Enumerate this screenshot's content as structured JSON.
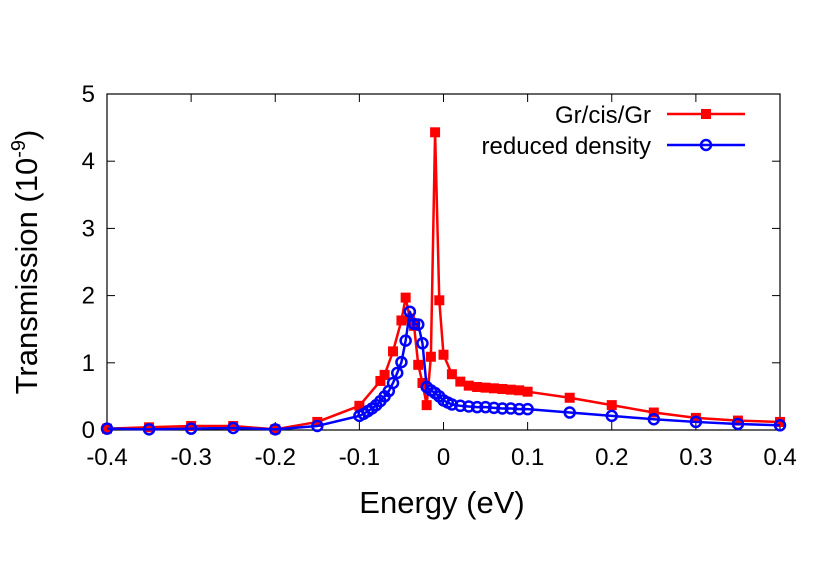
{
  "chart_data": {
    "type": "line",
    "xlabel": "Energy (eV)",
    "ylabel_main": "Transmission (10",
    "ylabel_exp": "-9",
    "ylabel_close": ")",
    "xlim": [
      -0.4,
      0.4
    ],
    "ylim": [
      0,
      5
    ],
    "xticks": [
      -0.4,
      -0.3,
      -0.2,
      -0.1,
      0,
      0.1,
      0.2,
      0.3,
      0.4
    ],
    "xtick_labels": [
      "-0.4",
      "-0.3",
      "-0.2",
      "-0.1",
      "0",
      "0.1",
      "0.2",
      "0.3",
      "0.4"
    ],
    "yticks": [
      0,
      1,
      2,
      3,
      4,
      5
    ],
    "ytick_labels": [
      "0",
      "1",
      "2",
      "3",
      "4",
      "5"
    ],
    "legend_position": "top-right",
    "grid": false,
    "series": [
      {
        "name": "Gr/cis/Gr",
        "color": "#ff0000",
        "marker": "filled-square",
        "x": [
          -0.4,
          -0.35,
          -0.3,
          -0.25,
          -0.2,
          -0.15,
          -0.1,
          -0.075,
          -0.07,
          -0.06,
          -0.05,
          -0.045,
          -0.04,
          -0.035,
          -0.03,
          -0.025,
          -0.02,
          -0.015,
          -0.01,
          -0.005,
          0,
          0.01,
          0.02,
          0.03,
          0.04,
          0.05,
          0.06,
          0.07,
          0.08,
          0.09,
          0.1,
          0.15,
          0.2,
          0.25,
          0.3,
          0.35,
          0.4
        ],
        "y": [
          0.02,
          0.04,
          0.06,
          0.06,
          0.01,
          0.12,
          0.36,
          0.73,
          0.82,
          1.17,
          1.63,
          1.97,
          1.66,
          1.55,
          0.97,
          0.7,
          0.37,
          1.09,
          4.43,
          1.93,
          1.12,
          0.83,
          0.72,
          0.66,
          0.64,
          0.63,
          0.62,
          0.61,
          0.6,
          0.59,
          0.57,
          0.48,
          0.37,
          0.26,
          0.18,
          0.14,
          0.12
        ]
      },
      {
        "name": "reduced density",
        "color": "#0000ff",
        "marker": "open-circle",
        "x": [
          -0.4,
          -0.35,
          -0.3,
          -0.25,
          -0.2,
          -0.15,
          -0.1,
          -0.095,
          -0.09,
          -0.085,
          -0.08,
          -0.075,
          -0.07,
          -0.065,
          -0.06,
          -0.055,
          -0.05,
          -0.045,
          -0.04,
          -0.035,
          -0.03,
          -0.025,
          -0.02,
          -0.015,
          -0.01,
          -0.005,
          0,
          0.005,
          0.01,
          0.02,
          0.03,
          0.04,
          0.05,
          0.06,
          0.07,
          0.08,
          0.09,
          0.1,
          0.15,
          0.2,
          0.25,
          0.3,
          0.35,
          0.4
        ],
        "y": [
          0.02,
          0.01,
          0.02,
          0.03,
          0.01,
          0.06,
          0.21,
          0.24,
          0.28,
          0.32,
          0.37,
          0.43,
          0.5,
          0.58,
          0.7,
          0.85,
          1.01,
          1.33,
          1.76,
          1.58,
          1.57,
          1.29,
          0.64,
          0.59,
          0.55,
          0.5,
          0.44,
          0.41,
          0.38,
          0.36,
          0.35,
          0.34,
          0.34,
          0.33,
          0.32,
          0.32,
          0.31,
          0.31,
          0.26,
          0.21,
          0.16,
          0.12,
          0.09,
          0.07
        ]
      }
    ]
  }
}
